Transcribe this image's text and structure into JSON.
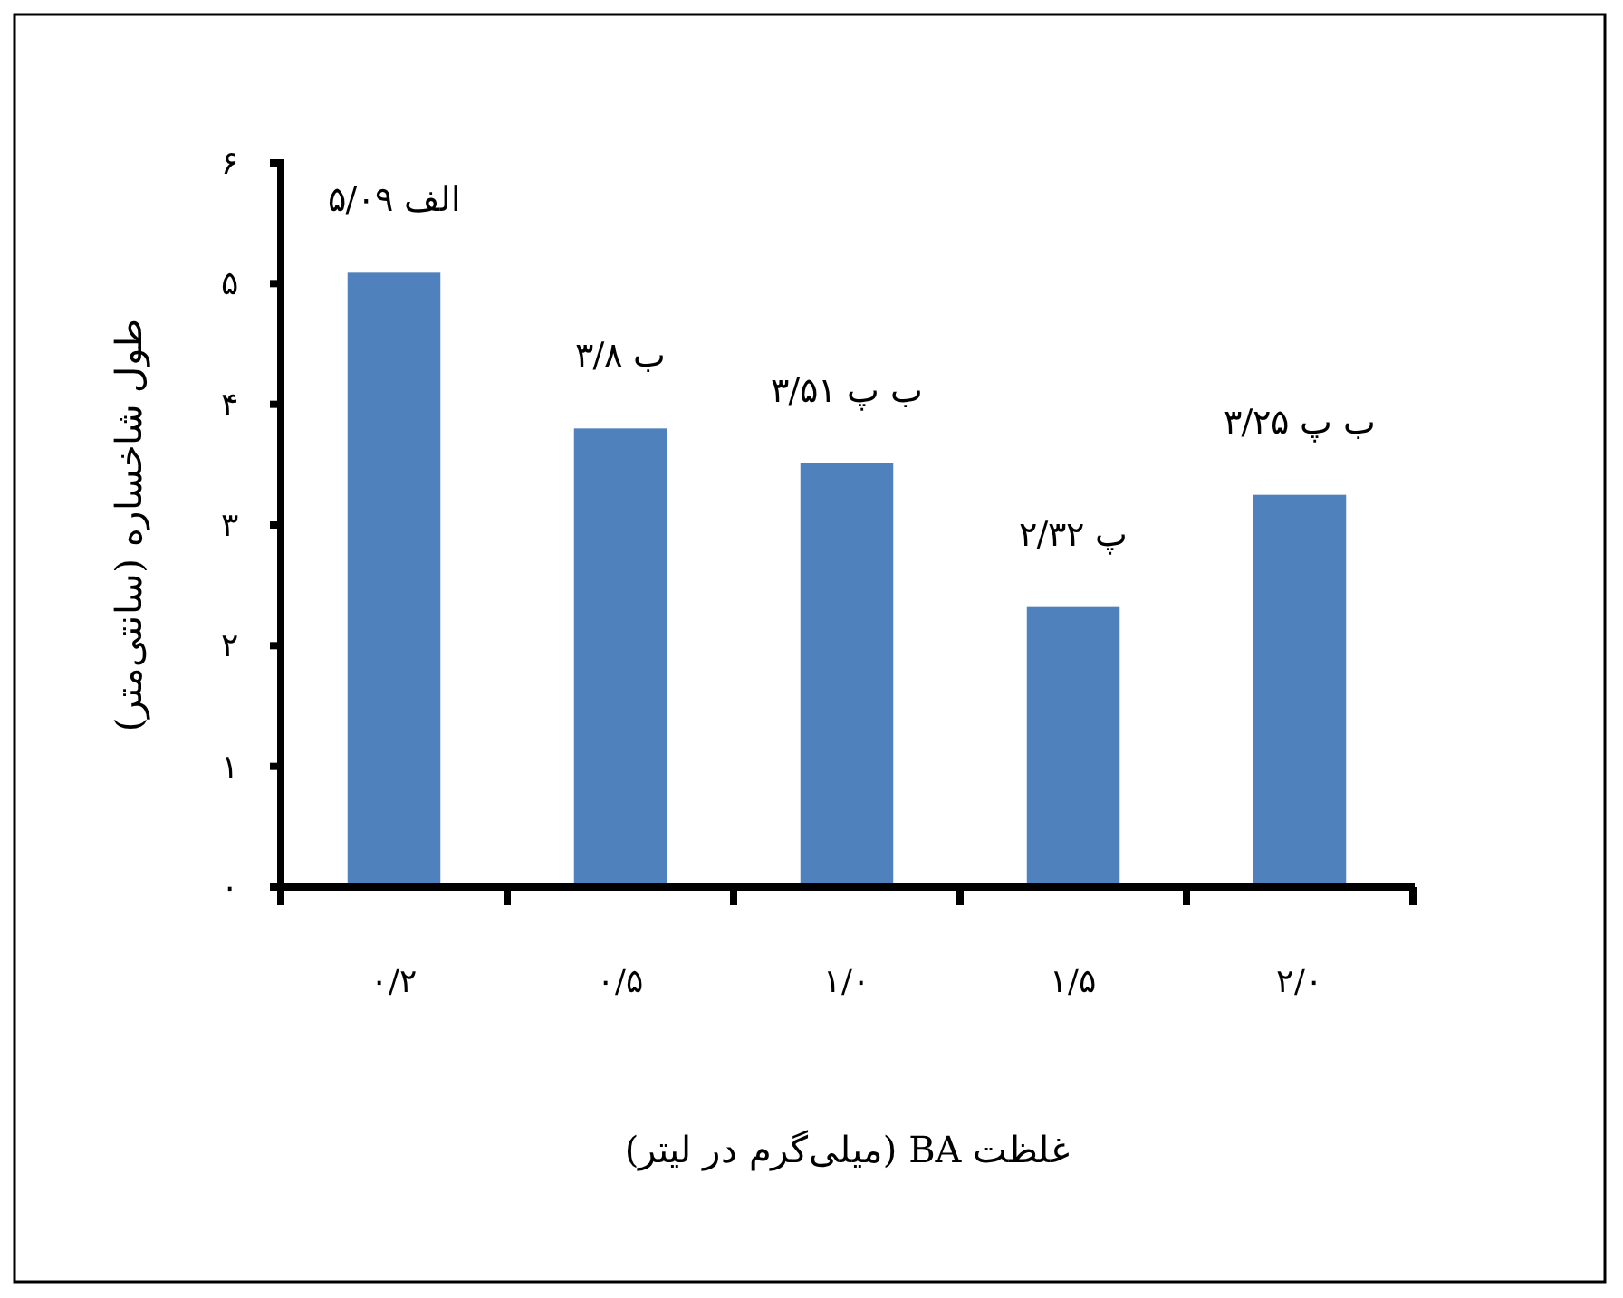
{
  "chart_data": {
    "type": "bar",
    "xlabel": "غلظت BA (میلی‌گرم در لیتر)",
    "ylabel": "طول شاخساره (سانتی‌متر)",
    "categories": [
      "۰/۲",
      "۰/۵",
      "۱/۰",
      "۱/۵",
      "۲/۰"
    ],
    "values": [
      5.09,
      3.8,
      3.51,
      2.32,
      3.25
    ],
    "value_labels": [
      "الف ۵/۰۹",
      "ب ۳/۸",
      "ب پ ۳/۵۱",
      "پ ۲/۳۲",
      "ب پ ۳/۲۵"
    ],
    "color": "#4f81bd",
    "ylim": [
      0,
      6
    ],
    "yticks": [
      {
        "value": 0,
        "label": "۰"
      },
      {
        "value": 1,
        "label": "۱"
      },
      {
        "value": 2,
        "label": "۲"
      },
      {
        "value": 3,
        "label": "۳"
      },
      {
        "value": 4,
        "label": "۴"
      },
      {
        "value": 5,
        "label": "۵"
      },
      {
        "value": 6,
        "label": "۶"
      }
    ],
    "grid": false
  }
}
